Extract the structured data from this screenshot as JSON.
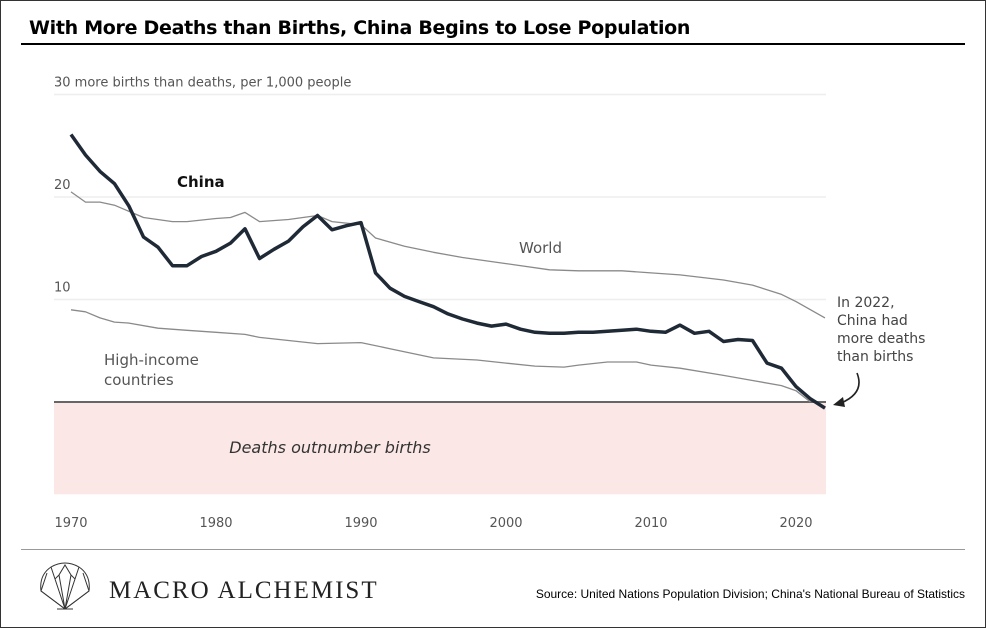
{
  "title": "With More Deaths than Births, China Begins to Lose Population",
  "brand": "MACRO ALCHEMIST",
  "source": "Source: United Nations Population Division; China's National Bureau of Statistics",
  "chart_data": {
    "type": "line",
    "title": "With More Deaths than Births, China Begins to Lose Population",
    "ylabel": "30 more births than deaths, per 1,000 people",
    "xlabel": "",
    "xlim": [
      1970,
      2022
    ],
    "ylim": [
      -9,
      30
    ],
    "grid": true,
    "y_ticks": [
      {
        "v": 30,
        "label": "30 more births than deaths, per 1,000 people"
      },
      {
        "v": 20,
        "label": "20"
      },
      {
        "v": 10,
        "label": "10"
      }
    ],
    "x_ticks": [
      1970,
      1980,
      1990,
      2000,
      2010,
      2020
    ],
    "x_tick_labels": [
      "1970",
      "1980",
      "1990",
      "2000",
      "2010",
      "2020"
    ],
    "series": [
      {
        "name": "China",
        "label": "China",
        "color": "#1f2a36",
        "x": [
          1970,
          1971,
          1972,
          1973,
          1974,
          1975,
          1976,
          1977,
          1978,
          1979,
          1980,
          1981,
          1982,
          1983,
          1984,
          1985,
          1986,
          1987,
          1988,
          1989,
          1990,
          1991,
          1992,
          1993,
          1994,
          1995,
          1996,
          1997,
          1998,
          1999,
          2000,
          2001,
          2002,
          2003,
          2004,
          2005,
          2006,
          2007,
          2008,
          2009,
          2010,
          2011,
          2012,
          2013,
          2014,
          2015,
          2016,
          2017,
          2018,
          2019,
          2020,
          2021,
          2022
        ],
        "values": [
          26.1,
          24.1,
          22.5,
          21.3,
          19.1,
          16.1,
          15.1,
          13.3,
          13.3,
          14.2,
          14.7,
          15.5,
          16.9,
          14.0,
          14.9,
          15.7,
          17.1,
          18.2,
          16.8,
          17.2,
          17.5,
          12.6,
          11.1,
          10.3,
          9.8,
          9.3,
          8.6,
          8.1,
          7.7,
          7.4,
          7.6,
          7.1,
          6.8,
          6.7,
          6.7,
          6.8,
          6.8,
          6.9,
          7.0,
          7.1,
          6.9,
          6.8,
          7.5,
          6.7,
          6.9,
          5.9,
          6.1,
          6.0,
          3.8,
          3.3,
          1.5,
          0.3,
          -0.6
        ]
      },
      {
        "name": "World",
        "label": "World",
        "color": "#8a8a8a",
        "x": [
          1970,
          1971,
          1972,
          1973,
          1975,
          1977,
          1978,
          1980,
          1981,
          1982,
          1983,
          1985,
          1987,
          1988,
          1990,
          1991,
          1993,
          1995,
          1997,
          2000,
          2003,
          2005,
          2008,
          2010,
          2012,
          2015,
          2017,
          2019,
          2020,
          2022
        ],
        "values": [
          20.5,
          19.5,
          19.5,
          19.2,
          18.0,
          17.6,
          17.6,
          17.9,
          18.0,
          18.5,
          17.6,
          17.8,
          18.2,
          17.6,
          17.3,
          16.0,
          15.2,
          14.6,
          14.1,
          13.5,
          12.9,
          12.8,
          12.8,
          12.6,
          12.4,
          11.9,
          11.4,
          10.5,
          9.8,
          8.2
        ]
      },
      {
        "name": "High-income countries",
        "label": "High-income countries",
        "color": "#8a8a8a",
        "x": [
          1970,
          1971,
          1972,
          1973,
          1974,
          1976,
          1978,
          1980,
          1982,
          1983,
          1985,
          1987,
          1990,
          1992,
          1995,
          1998,
          2000,
          2002,
          2004,
          2005,
          2007,
          2009,
          2010,
          2012,
          2015,
          2017,
          2019,
          2020,
          2021
        ],
        "values": [
          9.0,
          8.8,
          8.2,
          7.8,
          7.7,
          7.2,
          7.0,
          6.8,
          6.6,
          6.3,
          6.0,
          5.7,
          5.8,
          5.2,
          4.3,
          4.1,
          3.8,
          3.5,
          3.4,
          3.6,
          3.9,
          3.9,
          3.6,
          3.3,
          2.6,
          2.1,
          1.6,
          1.1,
          0.0
        ]
      }
    ],
    "annotations": [
      {
        "text": "In 2022, China had more deaths than births",
        "lines": [
          "In 2022,",
          "China had",
          "more deaths",
          "than births"
        ]
      },
      {
        "text": "Deaths outnumber births"
      }
    ]
  }
}
